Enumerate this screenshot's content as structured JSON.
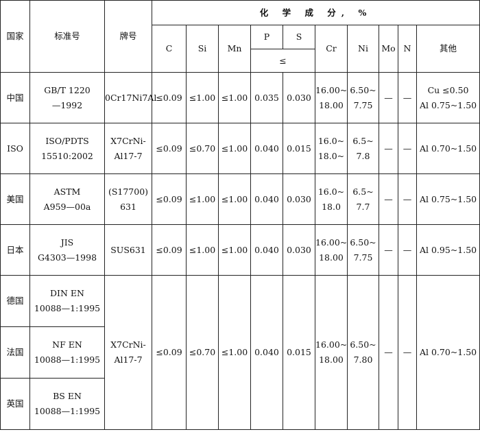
{
  "headers": {
    "country": "国家",
    "standard": "标准号",
    "grade": "牌号",
    "composition": "化 学 成 分, %",
    "C": "C",
    "Si": "Si",
    "Mn": "Mn",
    "P": "P",
    "S": "S",
    "le": "≤",
    "Cr": "Cr",
    "Ni": "Ni",
    "Mo": "Mo",
    "N": "N",
    "other": "其他"
  },
  "rows": [
    {
      "country": "中国",
      "standard": [
        "GB/T 1220",
        "—1992"
      ],
      "grade": [
        "0Cr17Ni7Al"
      ],
      "C": "≤0.09",
      "Si": "≤1.00",
      "Mn": "≤1.00",
      "P": "0.035",
      "S": "0.030",
      "Cr": [
        "16.00~",
        "18.00"
      ],
      "Ni": [
        "6.50~",
        "7.75"
      ],
      "Mo": "—",
      "N": "—",
      "other": [
        "Cu ≤0.50",
        "Al 0.75~1.50"
      ]
    },
    {
      "country": "ISO",
      "standard": [
        "ISO/PDTS",
        "15510:2002"
      ],
      "grade": [
        "X7CrNi-",
        "Al17-7"
      ],
      "C": "≤0.09",
      "Si": "≤0.70",
      "Mn": "≤1.00",
      "P": "0.040",
      "S": "0.015",
      "Cr": [
        "16.0~",
        "18.0~"
      ],
      "Ni": [
        "6.5~",
        "7.8"
      ],
      "Mo": "—",
      "N": "—",
      "other": [
        "Al 0.70~1.50"
      ]
    },
    {
      "country": "美国",
      "standard": [
        "ASTM",
        "A959—00a"
      ],
      "grade": [
        "(S17700)",
        "631"
      ],
      "C": "≤0.09",
      "Si": "≤1.00",
      "Mn": "≤1.00",
      "P": "0.040",
      "S": "0.030",
      "Cr": [
        "16.0~",
        "18.0"
      ],
      "Ni": [
        "6.5~",
        "7.7"
      ],
      "Mo": "—",
      "N": "—",
      "other": [
        "Al 0.75~1.50"
      ]
    },
    {
      "country": "日本",
      "standard": [
        "JIS",
        "G4303—1998"
      ],
      "grade": [
        "SUS631"
      ],
      "C": "≤0.09",
      "Si": "≤1.00",
      "Mn": "≤1.00",
      "P": "0.040",
      "S": "0.030",
      "Cr": [
        "16.00~",
        "18.00"
      ],
      "Ni": [
        "6.50~",
        "7.75"
      ],
      "Mo": "—",
      "N": "—",
      "other": [
        "Al 0.95~1.50"
      ]
    }
  ],
  "merged": {
    "countries": [
      {
        "country": "德国",
        "standard": [
          "DIN EN",
          "10088—1:1995"
        ]
      },
      {
        "country": "法国",
        "standard": [
          "NF EN",
          "10088—1:1995"
        ]
      },
      {
        "country": "英国",
        "standard": [
          "BS EN",
          "10088—1:1995"
        ]
      }
    ],
    "grade": [
      "X7CrNi-",
      "Al17-7"
    ],
    "C": "≤0.09",
    "Si": "≤0.70",
    "Mn": "≤1.00",
    "P": "0.040",
    "S": "0.015",
    "Cr": [
      "16.00~",
      "18.00"
    ],
    "Ni": [
      "6.50~",
      "7.80"
    ],
    "Mo": "—",
    "N": "—",
    "other": [
      "Al 0.70~1.50"
    ]
  }
}
